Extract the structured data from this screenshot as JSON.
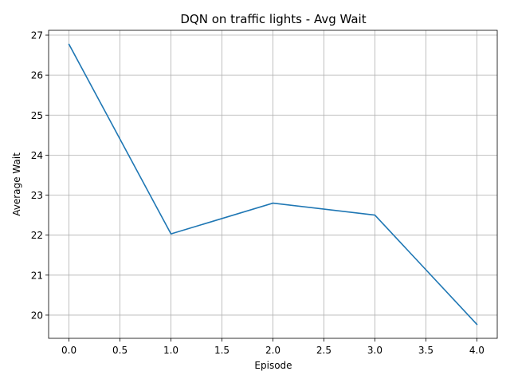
{
  "chart_data": {
    "type": "line",
    "title": "DQN on traffic lights - Avg Wait",
    "xlabel": "Episode",
    "ylabel": "Average Wait",
    "x": [
      0,
      1,
      2,
      3,
      4
    ],
    "series": [
      {
        "values": [
          26.77,
          22.03,
          22.8,
          22.5,
          19.77
        ],
        "color": "#1f77b4"
      }
    ],
    "xlim": [
      -0.2,
      4.2
    ],
    "ylim": [
      19.42,
      27.12
    ],
    "xticks": [
      0.0,
      0.5,
      1.0,
      1.5,
      2.0,
      2.5,
      3.0,
      3.5,
      4.0
    ],
    "xtick_labels": [
      "0.0",
      "0.5",
      "1.0",
      "1.5",
      "2.0",
      "2.5",
      "3.0",
      "3.5",
      "4.0"
    ],
    "yticks": [
      20,
      21,
      22,
      23,
      24,
      25,
      26,
      27
    ],
    "ytick_labels": [
      "20",
      "21",
      "22",
      "23",
      "24",
      "25",
      "26",
      "27"
    ],
    "grid": true,
    "grid_color": "#b0b0b0",
    "legend": false
  }
}
